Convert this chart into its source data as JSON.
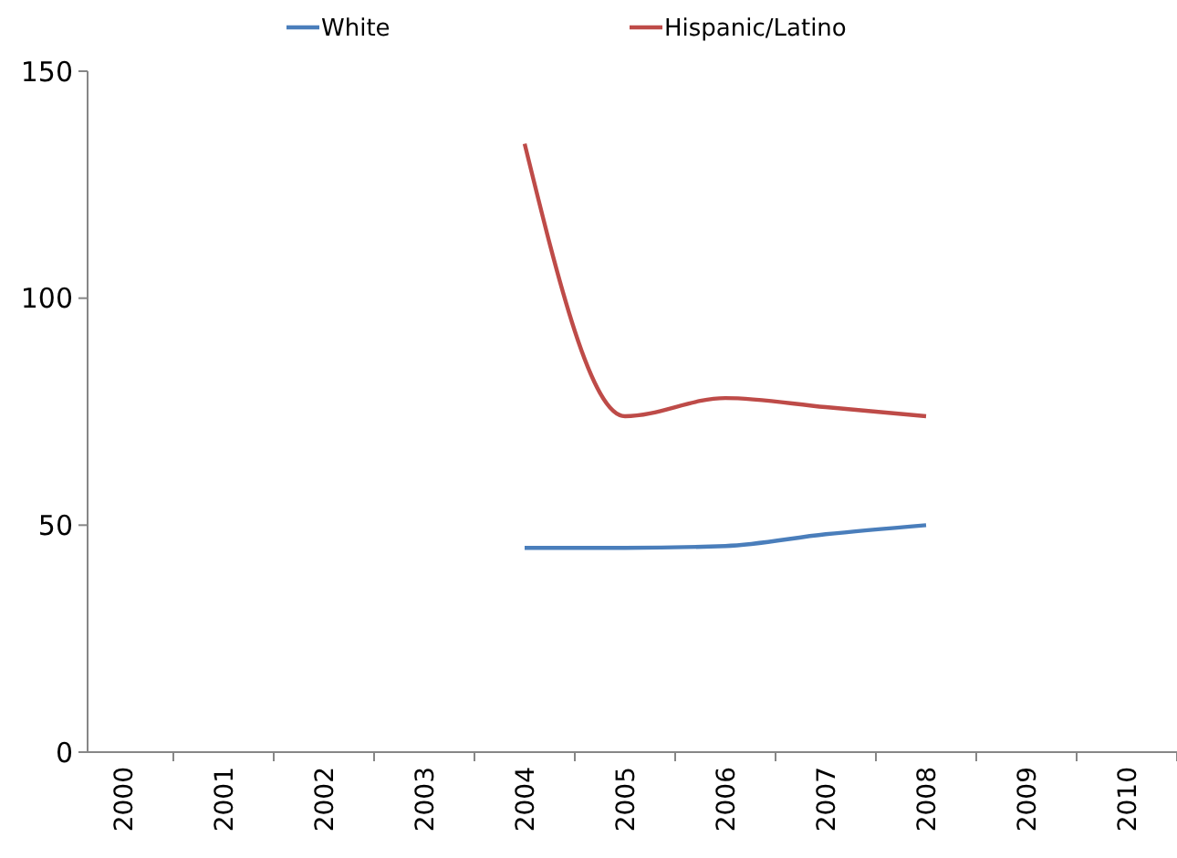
{
  "chart_data": {
    "type": "line",
    "categories": [
      "2000",
      "2001",
      "2002",
      "2003",
      "2004",
      "2005",
      "2006",
      "2007",
      "2008",
      "2009",
      "2010"
    ],
    "series": [
      {
        "name": "White",
        "color": "#4a7ebb",
        "values": [
          null,
          null,
          null,
          null,
          45,
          45,
          45.4,
          48,
          50,
          null,
          null
        ]
      },
      {
        "name": "Hispanic/Latino",
        "color": "#be4b48",
        "values": [
          null,
          null,
          null,
          null,
          134,
          74,
          78,
          76,
          74,
          null,
          null
        ]
      }
    ],
    "ylim": [
      0,
      150
    ],
    "yticks": [
      0,
      50,
      100,
      150
    ],
    "grid": false,
    "legend": "top",
    "marker": "none",
    "line_style": "solid"
  }
}
